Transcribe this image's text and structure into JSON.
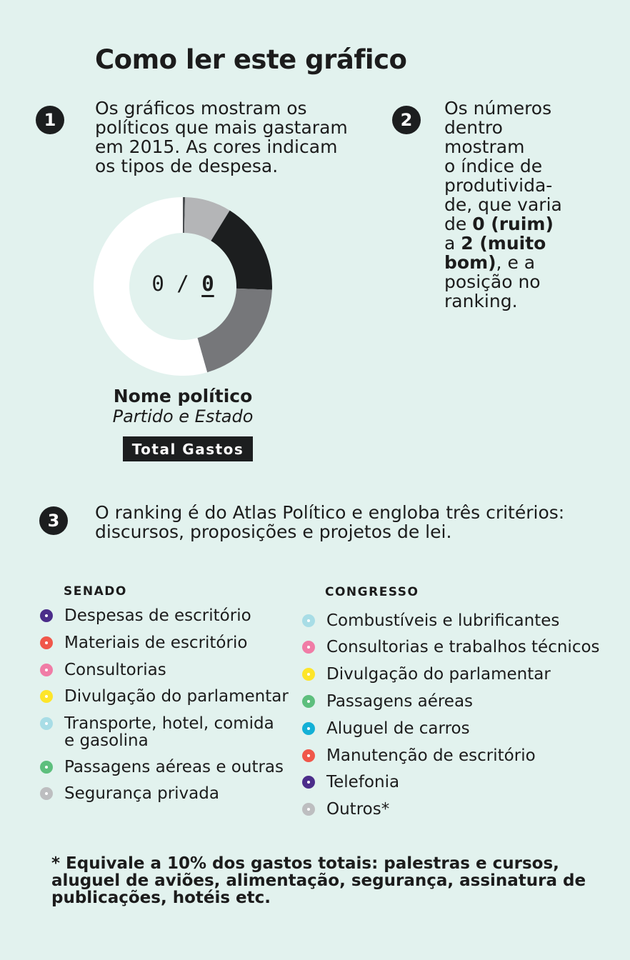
{
  "title": "Como ler este gráfico",
  "steps": [
    {
      "number": "1",
      "text": "Os gráficos mostram os políticos que mais gastaram em 2015. As cores indicam os tipos de despesa."
    },
    {
      "number": "2",
      "parts": [
        {
          "text": "Os números\ndentro\nmostram\no índice de\nprodutivida-\nde, que varia\nde ",
          "bold": false
        },
        {
          "text": "0 (ruim)",
          "bold": true
        },
        {
          "text": "\na ",
          "bold": false
        },
        {
          "text": "2 (muito\nbom)",
          "bold": true
        },
        {
          "text": ", e a\nposição no\nranking.",
          "bold": false
        }
      ]
    },
    {
      "number": "3",
      "text": "O ranking é do Atlas Político e engloba três critérios: discursos, proposições e projetos de lei."
    }
  ],
  "example": {
    "index": "0",
    "separator": "/",
    "rank": "0",
    "name": "Nome político",
    "party": "Partido e Estado",
    "total_label": "Total Gastos"
  },
  "chart_data": {
    "type": "pie",
    "donut": true,
    "segments": [
      {
        "fraction": 0.004,
        "color": "#4a4d50"
      },
      {
        "fraction": 0.084,
        "color": "#b4b5b7"
      },
      {
        "fraction": 0.168,
        "color": "#1c1e1f"
      },
      {
        "fraction": 0.2,
        "color": "#76777a"
      },
      {
        "fraction": 0.544,
        "color": "#ffffff"
      }
    ]
  },
  "legend": {
    "senado": {
      "heading": "SENADO",
      "items": [
        {
          "label": "Despesas de escritório",
          "color": "#4b2d8a"
        },
        {
          "label": "Materiais de escritório",
          "color": "#f0574a"
        },
        {
          "label": "Consultorias",
          "color": "#f07ca6"
        },
        {
          "label": "Divulgação do parlamentar",
          "color": "#fde52a"
        },
        {
          "label": "Transporte, hotel, comida e gasolina",
          "color": "#a8dde6"
        },
        {
          "label": "Passagens aéreas e outras",
          "color": "#5dbf7d"
        },
        {
          "label": "Segurança privada",
          "color": "#bdbec0"
        }
      ]
    },
    "congresso": {
      "heading": "CONGRESSO",
      "items": [
        {
          "label": "Combustíveis e lubrificantes",
          "color": "#a8dde6"
        },
        {
          "label": "Consultorias e trabalhos técnicos",
          "color": "#f07ca6"
        },
        {
          "label": "Divulgação do parlamentar",
          "color": "#fde52a"
        },
        {
          "label": "Passagens aéreas",
          "color": "#5dbf7d"
        },
        {
          "label": "Aluguel de carros",
          "color": "#14b0d6"
        },
        {
          "label": "Manutenção de escritório",
          "color": "#f0574a"
        },
        {
          "label": "Telefonia",
          "color": "#4b2d8a"
        },
        {
          "label": "Outros*",
          "color": "#bdbec0"
        }
      ]
    }
  },
  "footnote": "* Equivale a 10% dos gastos totais: palestras e cursos, aluguel de aviões,  alimentação, segurança, assinatura de publicações, hotéis etc."
}
